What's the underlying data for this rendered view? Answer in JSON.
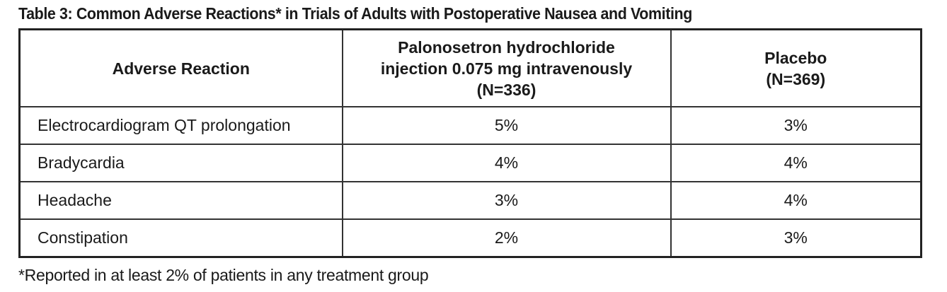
{
  "title": "Table 3: Common Adverse Reactions* in Trials of Adults with Postoperative Nausea and Vomiting",
  "headers": {
    "reaction": "Adverse Reaction",
    "palonosetron": {
      "line1": "Palonosetron hydrochloride",
      "line2": "injection 0.075 mg intravenously",
      "line3": "(N=336)"
    },
    "placebo": {
      "line1": "Placebo",
      "line2": "(N=369)"
    }
  },
  "rows": [
    {
      "reaction": "Electrocardiogram QT prolongation",
      "palonosetron": "5%",
      "placebo": "3%"
    },
    {
      "reaction": "Bradycardia",
      "palonosetron": "4%",
      "placebo": "4%"
    },
    {
      "reaction": "Headache",
      "palonosetron": "3%",
      "placebo": "4%"
    },
    {
      "reaction": "Constipation",
      "palonosetron": "2%",
      "placebo": "3%"
    }
  ],
  "footnote": "*Reported in at least 2% of patients in any treatment group"
}
